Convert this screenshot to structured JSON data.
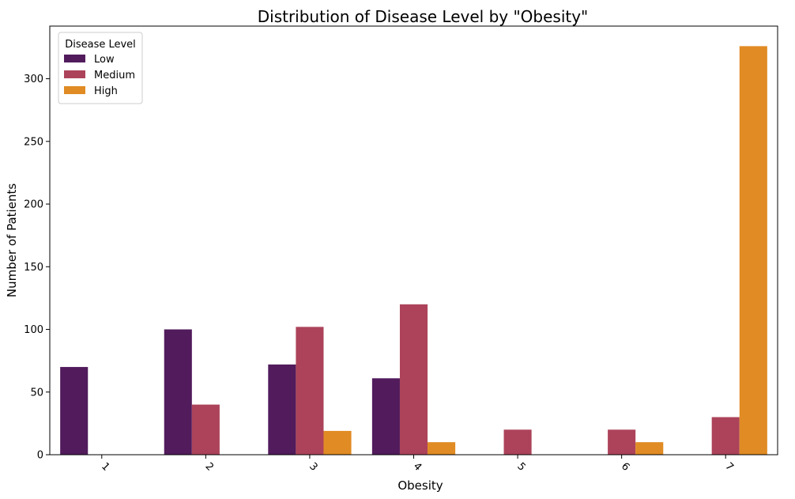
{
  "chart_data": {
    "type": "bar",
    "title": "Distribution of Disease Level by \"Obesity\"",
    "xlabel": "Obesity",
    "ylabel": "Number of Patients",
    "categories": [
      "1",
      "2",
      "3",
      "4",
      "5",
      "6",
      "7"
    ],
    "series": [
      {
        "name": "Low",
        "color": "#511b5c",
        "values": [
          70,
          100,
          72,
          61,
          0,
          0,
          0
        ]
      },
      {
        "name": "Medium",
        "color": "#ac435a",
        "values": [
          0,
          40,
          102,
          120,
          20,
          20,
          30
        ]
      },
      {
        "name": "High",
        "color": "#e08b24",
        "values": [
          0,
          0,
          19,
          10,
          0,
          10,
          326
        ]
      }
    ],
    "ylim": [
      0,
      342
    ],
    "yticks": [
      0,
      50,
      100,
      150,
      200,
      250,
      300
    ],
    "legend": {
      "title": "Disease Level",
      "position": "top-left"
    },
    "grid": false
  }
}
